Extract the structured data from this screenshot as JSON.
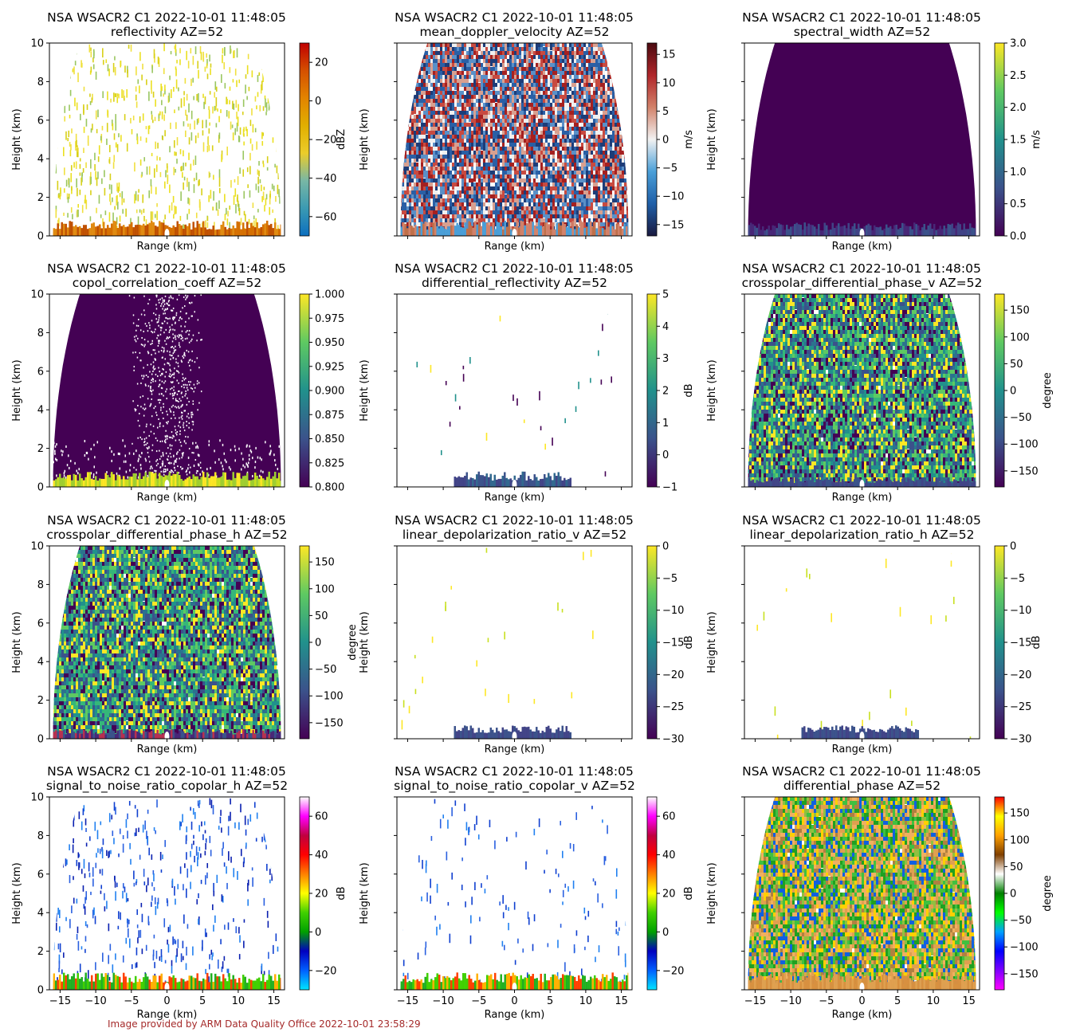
{
  "figure": {
    "footer": "Image provided by ARM Data Quality Office 2022-10-01 23:58:29"
  },
  "common": {
    "title_prefix": "NSA WSACR2 C1 2022-10-01 11:48:05",
    "xlabel": "Range (km)",
    "ylabel": "Height (km)"
  },
  "chart_data": [
    {
      "type": "heatmap",
      "title": "NSA WSACR2 C1 2022-10-01 11:48:05",
      "subtitle": "reflectivity  AZ=52",
      "xlabel": "Range (km)",
      "ylabel": "Height (km)",
      "xlim": [
        -16.5,
        16.5
      ],
      "ylim": [
        0,
        10
      ],
      "colorbar": {
        "label": "dBZ",
        "range": [
          -70,
          30
        ],
        "ticks": [
          "20",
          "0",
          "−20",
          "−40",
          "−60"
        ],
        "tick_values": [
          20,
          0,
          -20,
          -40,
          -60
        ],
        "colormap": [
          "#0c6fbf",
          "#3b9ab2",
          "#78b7a5",
          "#ebcc2a",
          "#e1af00",
          "#e28400",
          "#d55000",
          "#c00000"
        ]
      },
      "texture": {
        "kind": "sparse",
        "density": 0.5,
        "shape": "dome",
        "colors": [
          "#ebe020",
          "#f0e040",
          "#d8d018",
          "#9ac660"
        ],
        "base": {
          "colors": [
            "#d56f00",
            "#e08a10",
            "#c05000"
          ],
          "height": 0.8
        }
      },
      "show_xticklabels": false
    },
    {
      "type": "heatmap",
      "title": "NSA WSACR2 C1 2022-10-01 11:48:05",
      "subtitle": "mean_doppler_velocity  AZ=52",
      "xlabel": "Range (km)",
      "ylabel": "Height (km)",
      "xlim": [
        -16.5,
        16.5
      ],
      "ylim": [
        0,
        10
      ],
      "colorbar": {
        "label": "m/s",
        "range": [
          -17,
          17
        ],
        "ticks": [
          "15",
          "10",
          "5",
          "0",
          "−5",
          "−10",
          "−15"
        ],
        "tick_values": [
          15,
          10,
          5,
          0,
          -5,
          -10,
          -15
        ],
        "colormap": [
          "#1a1a40",
          "#1f5fa8",
          "#4a9fd8",
          "#f2f2f2",
          "#d2826a",
          "#b0262a",
          "#4a0a10"
        ]
      },
      "texture": {
        "kind": "dense",
        "density": 0.97,
        "shape": "dome",
        "colors": [
          "#2a5fa5",
          "#5a90c8",
          "#c84a40",
          "#a52020",
          "#f0f0f0",
          "#d8a090",
          "#1d3c78"
        ],
        "base": {
          "colors": [
            "#d2826a",
            "#4a9fd8",
            "#c0704a"
          ],
          "height": 0.8
        }
      },
      "show_xticklabels": false,
      "show_yticklabels": false
    },
    {
      "type": "heatmap",
      "title": "NSA WSACR2 C1 2022-10-01 11:48:05",
      "subtitle": "spectral_width  AZ=52",
      "xlabel": "Range (km)",
      "ylabel": "Height (km)",
      "xlim": [
        -16.5,
        16.5
      ],
      "ylim": [
        0,
        10
      ],
      "colorbar": {
        "label": "m/s",
        "range": [
          0,
          3
        ],
        "ticks": [
          "3.0",
          "2.5",
          "2.0",
          "1.5",
          "1.0",
          "0.5",
          "0.0"
        ],
        "tick_values": [
          3,
          2.5,
          2,
          1.5,
          1,
          0.5,
          0
        ],
        "colormap": [
          "#440154",
          "#3b528b",
          "#21918c",
          "#5ec962",
          "#fde725"
        ]
      },
      "texture": {
        "kind": "solid",
        "density": 1.0,
        "shape": "dome",
        "colors": [
          "#440154"
        ],
        "base": {
          "colors": [
            "#414487",
            "#3b528b",
            "#482878"
          ],
          "height": 0.7
        }
      },
      "show_xticklabels": false,
      "show_yticklabels": false
    },
    {
      "type": "heatmap",
      "title": "NSA WSACR2 C1 2022-10-01 11:48:05",
      "subtitle": "copol_correlation_coeff  AZ=52",
      "xlabel": "Range (km)",
      "ylabel": "Height (km)",
      "xlim": [
        -16.5,
        16.5
      ],
      "ylim": [
        0,
        10
      ],
      "colorbar": {
        "label": "",
        "range": [
          0.8,
          1.0
        ],
        "ticks": [
          "1.000",
          "0.975",
          "0.950",
          "0.925",
          "0.900",
          "0.875",
          "0.850",
          "0.825",
          "0.800"
        ],
        "tick_values": [
          1.0,
          0.975,
          0.95,
          0.925,
          0.9,
          0.875,
          0.85,
          0.825,
          0.8
        ],
        "colormap": [
          "#440154",
          "#3b528b",
          "#21918c",
          "#5ec962",
          "#fde725"
        ]
      },
      "texture": {
        "kind": "solid_holes",
        "density": 1.0,
        "shape": "dome",
        "colors": [
          "#440154"
        ],
        "base": {
          "colors": [
            "#c8e020",
            "#a0d030",
            "#fde725"
          ],
          "height": 0.8
        }
      },
      "show_xticklabels": false
    },
    {
      "type": "heatmap",
      "title": "NSA WSACR2 C1 2022-10-01 11:48:05",
      "subtitle": "differential_reflectivity  AZ=52",
      "xlabel": "Range (km)",
      "ylabel": "Height (km)",
      "xlim": [
        -16.5,
        16.5
      ],
      "ylim": [
        0,
        10
      ],
      "colorbar": {
        "label": "dB",
        "range": [
          -1,
          5
        ],
        "ticks": [
          "5",
          "4",
          "3",
          "2",
          "1",
          "0",
          "−1"
        ],
        "tick_values": [
          5,
          4,
          3,
          2,
          1,
          0,
          -1
        ],
        "colormap": [
          "#440154",
          "#3b528b",
          "#21918c",
          "#5ec962",
          "#fde725"
        ]
      },
      "texture": {
        "kind": "sparse",
        "density": 0.01,
        "shape": "dome",
        "colors": [
          "#440154",
          "#fde725",
          "#21918c"
        ],
        "base": {
          "colors": [
            "#3b528b",
            "#414487",
            "#31688e"
          ],
          "height": 0.8
        }
      },
      "show_xticklabels": false,
      "show_yticklabels": false
    },
    {
      "type": "heatmap",
      "title": "NSA WSACR2 C1 2022-10-01 11:48:05",
      "subtitle": "crosspolar_differential_phase_v  AZ=52",
      "xlabel": "Range (km)",
      "ylabel": "Height (km)",
      "xlim": [
        -16.5,
        16.5
      ],
      "ylim": [
        0,
        10
      ],
      "colorbar": {
        "label": "degree",
        "range": [
          -180,
          180
        ],
        "ticks": [
          "150",
          "100",
          "50",
          "0",
          "−50",
          "−100",
          "−150"
        ],
        "tick_values": [
          150,
          100,
          50,
          0,
          -50,
          -100,
          -150
        ],
        "colormap": [
          "#440154",
          "#3b528b",
          "#21918c",
          "#5ec962",
          "#fde725"
        ]
      },
      "texture": {
        "kind": "dense",
        "density": 0.99,
        "shape": "dome",
        "colors": [
          "#21918c",
          "#2c728e",
          "#5ec962",
          "#3b528b",
          "#fde725",
          "#35b779",
          "#440154"
        ],
        "base": {
          "colors": [
            "#3b528b",
            "#414487"
          ],
          "height": 0.5
        }
      },
      "show_xticklabels": false,
      "show_yticklabels": false
    },
    {
      "type": "heatmap",
      "title": "NSA WSACR2 C1 2022-10-01 11:48:05",
      "subtitle": "crosspolar_differential_phase_h  AZ=52",
      "xlabel": "Range (km)",
      "ylabel": "Height (km)",
      "xlim": [
        -16.5,
        16.5
      ],
      "ylim": [
        0,
        10
      ],
      "colorbar": {
        "label": "degree",
        "range": [
          -180,
          180
        ],
        "ticks": [
          "150",
          "100",
          "50",
          "0",
          "−50",
          "−100",
          "−150"
        ],
        "tick_values": [
          150,
          100,
          50,
          0,
          -50,
          -100,
          -150
        ],
        "colormap": [
          "#440154",
          "#3b528b",
          "#21918c",
          "#5ec962",
          "#fde725"
        ]
      },
      "texture": {
        "kind": "dense",
        "density": 0.99,
        "shape": "dome",
        "colors": [
          "#21918c",
          "#2c728e",
          "#5ec962",
          "#3b528b",
          "#fde725",
          "#35b779",
          "#440154"
        ],
        "base": {
          "colors": [
            "#482878",
            "#b83050",
            "#3b528b"
          ],
          "height": 0.5
        }
      },
      "show_xticklabels": false
    },
    {
      "type": "heatmap",
      "title": "NSA WSACR2 C1 2022-10-01 11:48:05",
      "subtitle": "linear_depolarization_ratio_v  AZ=52",
      "xlabel": "Range (km)",
      "ylabel": "Height (km)",
      "xlim": [
        -16.5,
        16.5
      ],
      "ylim": [
        0,
        10
      ],
      "colorbar": {
        "label": "dB",
        "range": [
          -30,
          0
        ],
        "ticks": [
          "0",
          "−5",
          "−10",
          "−15",
          "−20",
          "−25",
          "−30"
        ],
        "tick_values": [
          0,
          -5,
          -10,
          -15,
          -20,
          -25,
          -30
        ],
        "colormap": [
          "#440154",
          "#3b528b",
          "#21918c",
          "#5ec962",
          "#fde725"
        ]
      },
      "texture": {
        "kind": "sparse",
        "density": 0.006,
        "shape": "dome",
        "colors": [
          "#fde725",
          "#c8e020"
        ],
        "base": {
          "colors": [
            "#3b528b",
            "#414487"
          ],
          "height": 0.7
        }
      },
      "show_xticklabels": false,
      "show_yticklabels": false
    },
    {
      "type": "heatmap",
      "title": "NSA WSACR2 C1 2022-10-01 11:48:05",
      "subtitle": "linear_depolarization_ratio_h  AZ=52",
      "xlabel": "Range (km)",
      "ylabel": "Height (km)",
      "xlim": [
        -16.5,
        16.5
      ],
      "ylim": [
        0,
        10
      ],
      "colorbar": {
        "label": "dB",
        "range": [
          -30,
          0
        ],
        "ticks": [
          "0",
          "−5",
          "−10",
          "−15",
          "−20",
          "−25",
          "−30"
        ],
        "tick_values": [
          0,
          -5,
          -10,
          -15,
          -20,
          -25,
          -30
        ],
        "colormap": [
          "#440154",
          "#3b528b",
          "#21918c",
          "#5ec962",
          "#fde725"
        ]
      },
      "texture": {
        "kind": "sparse",
        "density": 0.006,
        "shape": "dome",
        "colors": [
          "#fde725",
          "#c8e020"
        ],
        "base": {
          "colors": [
            "#3b528b",
            "#414487"
          ],
          "height": 0.7
        }
      },
      "show_xticklabels": false,
      "show_yticklabels": false
    },
    {
      "type": "heatmap",
      "title": "NSA WSACR2 C1 2022-10-01 11:48:05",
      "subtitle": "signal_to_noise_ratio_copolar_h  AZ=52",
      "xlabel": "Range (km)",
      "ylabel": "Height (km)",
      "xlim": [
        -16.5,
        16.5
      ],
      "ylim": [
        0,
        10
      ],
      "x_ticks": [
        "−15",
        "−10",
        "−5",
        "0",
        "5",
        "10",
        "15"
      ],
      "x_tick_values": [
        -15,
        -10,
        -5,
        0,
        5,
        10,
        15
      ],
      "colorbar": {
        "label": "dB",
        "range": [
          -30,
          70
        ],
        "ticks": [
          "60",
          "40",
          "20",
          "0",
          "−20"
        ],
        "tick_values": [
          60,
          40,
          20,
          0,
          -20
        ],
        "colormap": [
          "#00e5ff",
          "#0060ff",
          "#0000c0",
          "#00a000",
          "#40d000",
          "#ffff00",
          "#ff8000",
          "#ff0000",
          "#c00040",
          "#ff00ff",
          "#ffffff"
        ]
      },
      "texture": {
        "kind": "sparse",
        "density": 0.3,
        "shape": "dome",
        "colors": [
          "#1040d0",
          "#2a60e0",
          "#2080f0",
          "#0a20b0"
        ],
        "base": {
          "colors": [
            "#20b020",
            "#40d000",
            "#ffb000",
            "#ff4000"
          ],
          "height": 0.9
        }
      },
      "show_xticklabels": true
    },
    {
      "type": "heatmap",
      "title": "NSA WSACR2 C1 2022-10-01 11:48:05",
      "subtitle": "signal_to_noise_ratio_copolar_v  AZ=52",
      "xlabel": "Range (km)",
      "ylabel": "Height (km)",
      "xlim": [
        -16.5,
        16.5
      ],
      "ylim": [
        0,
        10
      ],
      "x_ticks": [
        "−15",
        "−10",
        "−5",
        "0",
        "5",
        "10",
        "15"
      ],
      "x_tick_values": [
        -15,
        -10,
        -5,
        0,
        5,
        10,
        15
      ],
      "colorbar": {
        "label": "dB",
        "range": [
          -30,
          70
        ],
        "ticks": [
          "60",
          "40",
          "20",
          "0",
          "−20"
        ],
        "tick_values": [
          60,
          40,
          20,
          0,
          -20
        ],
        "colormap": [
          "#00e5ff",
          "#0060ff",
          "#0000c0",
          "#00a000",
          "#40d000",
          "#ffff00",
          "#ff8000",
          "#ff0000",
          "#c00040",
          "#ff00ff",
          "#ffffff"
        ]
      },
      "texture": {
        "kind": "sparse",
        "density": 0.1,
        "shape": "dome",
        "colors": [
          "#1040d0",
          "#2a60e0",
          "#2080f0"
        ],
        "base": {
          "colors": [
            "#20b020",
            "#40d000",
            "#ffb000",
            "#ff4000"
          ],
          "height": 0.9
        }
      },
      "show_xticklabels": true,
      "show_yticklabels": false
    },
    {
      "type": "heatmap",
      "title": "NSA WSACR2 C1 2022-10-01 11:48:05",
      "subtitle": "differential_phase  AZ=52",
      "xlabel": "Range (km)",
      "ylabel": "Height (km)",
      "xlim": [
        -16.5,
        16.5
      ],
      "ylim": [
        0,
        10
      ],
      "x_ticks": [
        "−15",
        "−10",
        "−5",
        "0",
        "5",
        "10",
        "15"
      ],
      "x_tick_values": [
        -15,
        -10,
        -5,
        0,
        5,
        10,
        15
      ],
      "colorbar": {
        "label": "degree",
        "range": [
          -180,
          180
        ],
        "ticks": [
          "150",
          "100",
          "50",
          "0",
          "−50",
          "−100",
          "−150"
        ],
        "tick_values": [
          150,
          100,
          50,
          0,
          -50,
          -100,
          -150
        ],
        "colormap": [
          "#ff00ff",
          "#8000ff",
          "#0000ff",
          "#00a0ff",
          "#00ff00",
          "#008000",
          "#ffffff",
          "#804000",
          "#ffa000",
          "#ffff00",
          "#ff0000"
        ]
      },
      "texture": {
        "kind": "dense",
        "density": 0.99,
        "shape": "dome",
        "colors": [
          "#e0a050",
          "#20a020",
          "#ffd000",
          "#40c040",
          "#b08040",
          "#1060e0",
          "#f0b060",
          "#90c040"
        ],
        "base": {
          "colors": [
            "#e0a050",
            "#d89040"
          ],
          "height": 0.9
        }
      },
      "show_xticklabels": true,
      "show_yticklabels": false
    }
  ]
}
